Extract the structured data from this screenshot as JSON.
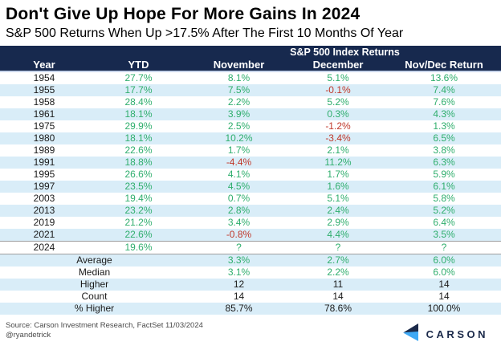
{
  "header": {
    "title": "Don't Give Up Hope For More Gains In 2024",
    "subtitle": "S&P 500 Returns When Up >17.5% After The First 10 Months Of Year"
  },
  "chart_data": {
    "type": "table",
    "title": "Don't Give Up Hope For More Gains In 2024",
    "subtitle": "S&P 500 Returns When Up >17.5% After The First 10 Months Of Year",
    "group_header": "S&P 500 Index Returns",
    "columns": [
      "Year",
      "YTD",
      "November",
      "December",
      "Nov/Dec Return"
    ],
    "rows": [
      {
        "year": "1954",
        "ytd": "27.7%",
        "november": "8.1%",
        "december": "5.1%",
        "novdec": "13.6%"
      },
      {
        "year": "1955",
        "ytd": "17.7%",
        "november": "7.5%",
        "december": "-0.1%",
        "novdec": "7.4%"
      },
      {
        "year": "1958",
        "ytd": "28.4%",
        "november": "2.2%",
        "december": "5.2%",
        "novdec": "7.6%"
      },
      {
        "year": "1961",
        "ytd": "18.1%",
        "november": "3.9%",
        "december": "0.3%",
        "novdec": "4.3%"
      },
      {
        "year": "1975",
        "ytd": "29.9%",
        "november": "2.5%",
        "december": "-1.2%",
        "novdec": "1.3%"
      },
      {
        "year": "1980",
        "ytd": "18.1%",
        "november": "10.2%",
        "december": "-3.4%",
        "novdec": "6.5%"
      },
      {
        "year": "1989",
        "ytd": "22.6%",
        "november": "1.7%",
        "december": "2.1%",
        "novdec": "3.8%"
      },
      {
        "year": "1991",
        "ytd": "18.8%",
        "november": "-4.4%",
        "december": "11.2%",
        "novdec": "6.3%"
      },
      {
        "year": "1995",
        "ytd": "26.6%",
        "november": "4.1%",
        "december": "1.7%",
        "novdec": "5.9%"
      },
      {
        "year": "1997",
        "ytd": "23.5%",
        "november": "4.5%",
        "december": "1.6%",
        "novdec": "6.1%"
      },
      {
        "year": "2003",
        "ytd": "19.4%",
        "november": "0.7%",
        "december": "5.1%",
        "novdec": "5.8%"
      },
      {
        "year": "2013",
        "ytd": "23.2%",
        "november": "2.8%",
        "december": "2.4%",
        "novdec": "5.2%"
      },
      {
        "year": "2019",
        "ytd": "21.2%",
        "november": "3.4%",
        "december": "2.9%",
        "novdec": "6.4%"
      },
      {
        "year": "2021",
        "ytd": "22.6%",
        "november": "-0.8%",
        "december": "4.4%",
        "novdec": "3.5%"
      },
      {
        "year": "2024",
        "ytd": "19.6%",
        "november": "?",
        "december": "?",
        "novdec": "?"
      }
    ],
    "summary": [
      {
        "label": "Average",
        "november": "3.3%",
        "december": "2.7%",
        "novdec": "6.0%",
        "value_color": "green"
      },
      {
        "label": "Median",
        "november": "3.1%",
        "december": "2.2%",
        "novdec": "6.0%",
        "value_color": "green"
      },
      {
        "label": "Higher",
        "november": "12",
        "december": "11",
        "novdec": "14",
        "value_color": "black"
      },
      {
        "label": "Count",
        "november": "14",
        "december": "14",
        "novdec": "14",
        "value_color": "black"
      },
      {
        "label": "% Higher",
        "november": "85.7%",
        "december": "78.6%",
        "novdec": "100.0%",
        "value_color": "black"
      }
    ]
  },
  "footer": {
    "source_line1": "Source: Carson Investment Research, FactSet 11/03/2024",
    "source_line2": "@ryandetrick",
    "logo_text": "CARSON"
  },
  "colors": {
    "navy": "#17294e",
    "rowblue": "#d9edf8",
    "green": "#2fae6d",
    "red": "#c0392b",
    "logo_navy": "#1b2a4a",
    "logo_blue": "#3fa9f5"
  }
}
